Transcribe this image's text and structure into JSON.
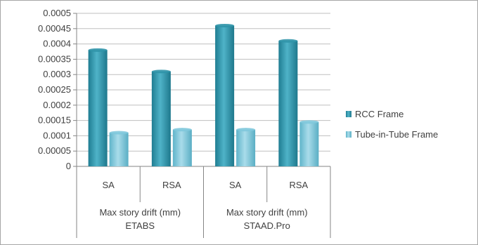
{
  "chart_data": {
    "type": "bar",
    "title": "",
    "xlabel": "",
    "ylabel": "",
    "ylim": [
      0,
      0.0005
    ],
    "yticks": [
      "0",
      "0.00005",
      "0.0001",
      "0.00015",
      "0.0002",
      "0.00025",
      "0.0003",
      "0.00035",
      "0.0004",
      "0.00045",
      "0.0005"
    ],
    "categories": [
      "SA",
      "RSA",
      "SA",
      "RSA"
    ],
    "groups": [
      {
        "label_line1": "Max story drift (mm)",
        "label_line2": "ETABS",
        "span": [
          0,
          1
        ]
      },
      {
        "label_line1": "Max story drift (mm)",
        "label_line2": "STAAD.Pro",
        "span": [
          2,
          3
        ]
      }
    ],
    "series": [
      {
        "name": "RCC Frame",
        "color": "#2f93a8",
        "values": [
          0.00038,
          0.00031,
          0.00046,
          0.00041
        ]
      },
      {
        "name": "Tube-in-Tube Frame",
        "color": "#7fc8dc",
        "values": [
          0.00011,
          0.00012,
          0.00012,
          0.000145
        ]
      }
    ],
    "grid": true,
    "legend_position": "right"
  }
}
